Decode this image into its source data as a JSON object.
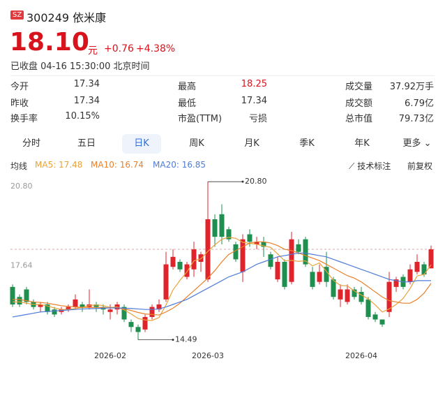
{
  "header": {
    "market": "SZ",
    "name": "300249 依米康",
    "price": "18.10",
    "unit": "元",
    "change": "+0.76",
    "change_pct": "+4.38%",
    "status": "已收盘 04-16 15:30:00 北京时间"
  },
  "stats": [
    [
      {
        "label": "今开",
        "value": "17.34"
      },
      {
        "label": "最高",
        "value": "18.25"
      },
      {
        "label": "成交量",
        "value": "37.92万手"
      }
    ],
    [
      {
        "label": "昨收",
        "value": "17.34"
      },
      {
        "label": "最低",
        "value": "17.34"
      },
      {
        "label": "成交额",
        "value": "6.79亿"
      }
    ],
    [
      {
        "label": "换手率",
        "value": "10.15%"
      },
      {
        "label": "市盈(TTM)",
        "value": "亏损"
      },
      {
        "label": "总市值",
        "value": "79.73亿"
      }
    ]
  ],
  "tabs": [
    "分时",
    "五日",
    "日K",
    "周K",
    "月K",
    "季K",
    "年K",
    "更多"
  ],
  "selected_tab": "日K",
  "toolbar": {
    "ma_label": "均线",
    "ma_legend": [
      "MA5: 17.48",
      "MA10: 16.74",
      "MA20: 16.85"
    ],
    "tools": [
      "技术标注",
      "前复权"
    ]
  },
  "chart_data": {
    "type": "candlestick",
    "categories": [
      null,
      null,
      null,
      null,
      null,
      null,
      null,
      null,
      null,
      null,
      null,
      null,
      null,
      null,
      "2026-02",
      null,
      null,
      null,
      null,
      null,
      null,
      null,
      null,
      null,
      null,
      null,
      null,
      null,
      "2026-03",
      null,
      null,
      null,
      null,
      null,
      null,
      null,
      null,
      null,
      null,
      null,
      null,
      null,
      null,
      null,
      null,
      null,
      null,
      null,
      null,
      null,
      "2026-04",
      null,
      null,
      null,
      null,
      null,
      null,
      null,
      null,
      null,
      null
    ],
    "open": [
      16.6,
      16.2,
      16.5,
      16.0,
      15.8,
      15.9,
      15.7,
      15.6,
      15.7,
      15.8,
      15.9,
      15.8,
      15.9,
      15.8,
      15.6,
      15.7,
      15.8,
      15.2,
      15.0,
      14.9,
      15.4,
      15.7,
      16.1,
      17.4,
      17.6,
      17.0,
      17.3,
      17.6,
      16.9,
      19.3,
      19.5,
      18.9,
      18.3,
      17.2,
      18.7,
      18.3,
      18.4,
      17.9,
      16.9,
      17.6,
      16.8,
      18.3,
      18.5,
      17.2,
      16.8,
      17.4,
      16.9,
      16.1,
      16.0,
      16.5,
      16.4,
      16.1,
      15.5,
      15.3,
      15.6,
      16.6,
      17.0,
      16.8,
      17.2,
      17.5,
      17.34
    ],
    "close": [
      15.9,
      15.9,
      16.0,
      15.8,
      15.9,
      15.6,
      15.5,
      15.7,
      15.8,
      16.1,
      15.8,
      15.9,
      15.8,
      15.7,
      15.7,
      15.9,
      15.3,
      15.0,
      14.8,
      15.4,
      15.8,
      15.9,
      17.5,
      17.8,
      17.3,
      17.5,
      18.1,
      17.9,
      19.3,
      18.6,
      18.6,
      18.5,
      17.7,
      18.5,
      18.4,
      18.4,
      18.2,
      17.4,
      17.6,
      16.6,
      18.5,
      18.0,
      17.5,
      16.6,
      17.2,
      16.8,
      16.2,
      16.5,
      16.5,
      16.2,
      16.0,
      15.4,
      15.3,
      15.1,
      16.8,
      16.9,
      16.6,
      17.3,
      17.6,
      17.1,
      18.1
    ],
    "high": [
      16.7,
      16.3,
      16.6,
      16.1,
      16.0,
      16.0,
      15.8,
      15.8,
      15.9,
      16.3,
      16.0,
      16.5,
      16.0,
      15.9,
      15.9,
      16.0,
      15.9,
      15.3,
      15.1,
      15.5,
      15.9,
      16.1,
      18.0,
      18.1,
      17.7,
      17.6,
      18.4,
      18.0,
      20.8,
      19.5,
      19.9,
      19.0,
      18.4,
      18.7,
      18.9,
      18.6,
      18.6,
      18.0,
      17.8,
      17.7,
      18.8,
      18.5,
      18.6,
      17.4,
      17.5,
      18.0,
      17.0,
      16.7,
      16.7,
      16.6,
      16.6,
      16.2,
      15.6,
      15.3,
      17.2,
      17.0,
      17.1,
      17.5,
      17.9,
      17.6,
      18.25
    ],
    "low": [
      15.8,
      15.8,
      15.9,
      15.7,
      15.6,
      15.5,
      15.4,
      15.5,
      15.6,
      15.7,
      15.6,
      15.7,
      15.6,
      15.5,
      15.3,
      15.5,
      15.2,
      14.8,
      14.49,
      14.8,
      15.3,
      15.6,
      16.0,
      17.3,
      17.2,
      16.9,
      17.0,
      17.2,
      16.8,
      18.2,
      18.3,
      18.4,
      17.6,
      16.8,
      18.2,
      18.1,
      17.8,
      17.3,
      16.8,
      16.5,
      16.7,
      17.9,
      17.4,
      16.5,
      16.7,
      16.6,
      16.1,
      15.8,
      15.9,
      16.1,
      15.9,
      15.3,
      15.2,
      15.0,
      15.4,
      16.4,
      16.5,
      16.7,
      17.1,
      17.0,
      17.34
    ],
    "up_color": "#e0242b",
    "down_color": "#1e8f4e",
    "series": [
      {
        "name": "MA5",
        "color": "#e8a23a",
        "values": [
          16.0,
          16.0,
          15.95,
          15.9,
          15.9,
          15.84,
          15.76,
          15.7,
          15.7,
          15.74,
          15.78,
          15.86,
          15.88,
          15.86,
          15.78,
          15.8,
          15.68,
          15.52,
          15.34,
          15.28,
          15.26,
          15.38,
          15.88,
          16.48,
          16.86,
          17.2,
          17.64,
          17.72,
          18.02,
          18.28,
          18.5,
          18.58,
          18.54,
          18.38,
          18.34,
          18.3,
          18.24,
          18.18,
          17.92,
          17.64,
          17.66,
          17.62,
          17.64,
          17.44,
          17.56,
          17.22,
          16.86,
          16.66,
          16.64,
          16.44,
          16.28,
          16.12,
          15.88,
          15.6,
          15.72,
          15.9,
          16.14,
          16.54,
          17.04,
          17.1,
          17.48
        ]
      },
      {
        "name": "MA10",
        "color": "#e9802a",
        "values": [
          16.1,
          16.1,
          16.05,
          16.0,
          15.98,
          15.95,
          15.9,
          15.85,
          15.82,
          15.8,
          15.78,
          15.78,
          15.78,
          15.78,
          15.76,
          15.78,
          15.72,
          15.66,
          15.58,
          15.52,
          15.5,
          15.48,
          15.6,
          15.75,
          15.95,
          16.2,
          16.45,
          16.7,
          16.95,
          17.25,
          17.6,
          17.9,
          18.05,
          18.2,
          18.35,
          18.4,
          18.4,
          18.35,
          18.25,
          18.1,
          18.05,
          17.95,
          17.85,
          17.75,
          17.65,
          17.5,
          17.35,
          17.2,
          17.05,
          16.95,
          16.8,
          16.6,
          16.4,
          16.2,
          16.05,
          16.0,
          15.95,
          15.95,
          16.1,
          16.35,
          16.74
        ]
      },
      {
        "name": "MA20",
        "color": "#4f7bd8",
        "values": [
          15.4,
          15.45,
          15.5,
          15.55,
          15.6,
          15.62,
          15.64,
          15.66,
          15.68,
          15.7,
          15.72,
          15.73,
          15.74,
          15.75,
          15.76,
          15.76,
          15.75,
          15.74,
          15.72,
          15.7,
          15.7,
          15.72,
          15.8,
          15.9,
          16.0,
          16.1,
          16.25,
          16.4,
          16.55,
          16.7,
          16.85,
          17.0,
          17.1,
          17.2,
          17.35,
          17.5,
          17.6,
          17.7,
          17.8,
          17.85,
          17.9,
          17.95,
          17.95,
          17.9,
          17.85,
          17.8,
          17.7,
          17.6,
          17.5,
          17.4,
          17.3,
          17.2,
          17.1,
          17.0,
          16.9,
          16.85,
          16.8,
          16.8,
          16.85,
          16.85,
          16.85
        ]
      }
    ],
    "ylim": [
      14.2,
      21.0
    ],
    "yticks": [
      {
        "value": 20.8,
        "label": "20.80"
      },
      17.64
    ],
    "annotations": [
      {
        "value": 20.8,
        "label": "20.80"
      },
      {
        "value": 14.49,
        "label": "14.49"
      }
    ],
    "last_price_line": true
  }
}
